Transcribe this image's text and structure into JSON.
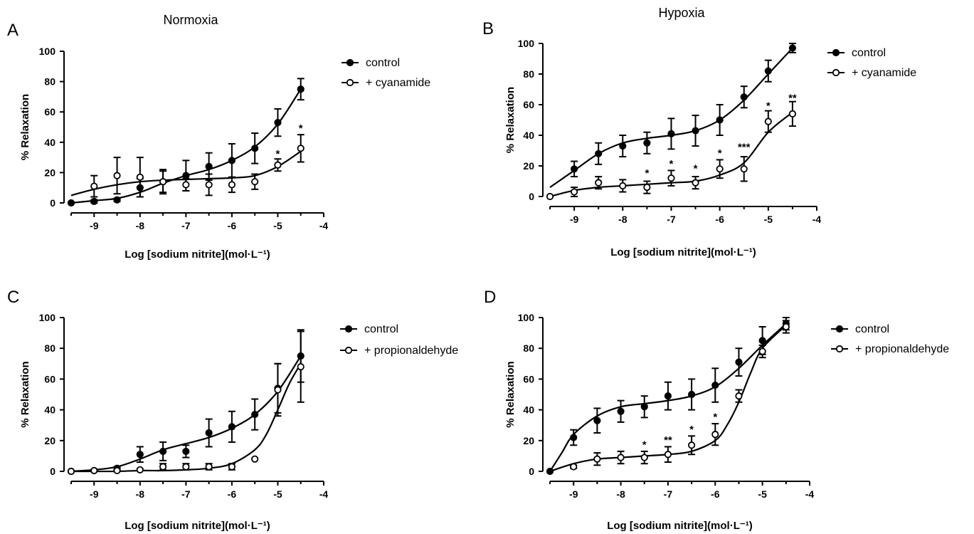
{
  "chart_data": [
    {
      "type": "line",
      "panel_label": "A",
      "title": "Normoxia",
      "xlabel": "Log [sodium nitrite](mol·L⁻¹)",
      "ylabel": "% Relaxation",
      "xlim": [
        -9.5,
        -4
      ],
      "ylim": [
        0,
        100
      ],
      "xticks": [
        "-9",
        "-8",
        "-7",
        "-6",
        "-5",
        "-4"
      ],
      "yticks": [
        "0",
        "20",
        "40",
        "60",
        "80",
        "100"
      ],
      "legend_position": "top-right",
      "series": [
        {
          "name": "control",
          "marker": "filled",
          "x": [
            -9.5,
            -9,
            -8.5,
            -8,
            -7.5,
            -7,
            -6.5,
            -6,
            -5.5,
            -5,
            -4.5
          ],
          "y": [
            0,
            1,
            2,
            10,
            14,
            18,
            24,
            28,
            36,
            53,
            75
          ],
          "err": [
            0,
            1,
            1,
            6,
            8,
            10,
            9,
            11,
            10,
            9,
            7
          ],
          "fit_x": [
            -9.5,
            -9,
            -8.5,
            -8,
            -7.5,
            -7,
            -6.5,
            -6,
            -5.5,
            -5,
            -4.5
          ],
          "fit_y": [
            0,
            1.5,
            3,
            7,
            13,
            18,
            22,
            28,
            37,
            52,
            75
          ]
        },
        {
          "name": "+ cyanamide",
          "marker": "open",
          "x": [
            -9,
            -8.5,
            -8,
            -7.5,
            -7,
            -6.5,
            -6,
            -5.5,
            -5,
            -4.5
          ],
          "y": [
            11,
            18,
            17,
            14,
            12,
            12,
            12,
            14,
            25,
            36
          ],
          "err": [
            7,
            12,
            13,
            7,
            4,
            7,
            5,
            5,
            4,
            9
          ],
          "fit_x": [
            -9.5,
            -9,
            -8.5,
            -8,
            -7.5,
            -7,
            -6.5,
            -6,
            -5.5,
            -5,
            -4.5
          ],
          "fit_y": [
            5,
            9,
            12,
            14,
            15,
            15.5,
            16,
            16.5,
            18,
            24,
            34
          ]
        }
      ],
      "annotations": [
        {
          "x": -5,
          "y": 31,
          "text": "*"
        },
        {
          "x": -4.5,
          "y": 48,
          "text": "*"
        }
      ]
    },
    {
      "type": "line",
      "panel_label": "B",
      "title": "Hypoxia",
      "xlabel": "Log [sodium nitrite](mol·L⁻¹)",
      "ylabel": "% Relaxation",
      "xlim": [
        -9.5,
        -4
      ],
      "ylim": [
        0,
        100
      ],
      "xticks": [
        "-9",
        "-8",
        "-7",
        "-6",
        "-5",
        "-4"
      ],
      "yticks": [
        "0",
        "20",
        "40",
        "60",
        "80",
        "100"
      ],
      "legend_position": "top-right",
      "series": [
        {
          "name": "control",
          "marker": "filled",
          "x": [
            -9,
            -8.5,
            -8,
            -7.5,
            -7,
            -6.5,
            -6,
            -5.5,
            -5,
            -4.5
          ],
          "y": [
            18,
            28,
            33,
            35,
            41,
            43,
            50,
            65,
            82,
            97
          ],
          "err": [
            5,
            7,
            7,
            7,
            10,
            10,
            10,
            7,
            7,
            3
          ],
          "fit_x": [
            -9.5,
            -9,
            -8.5,
            -8,
            -7.5,
            -7,
            -6.5,
            -6,
            -5.5,
            -5,
            -4.5
          ],
          "fit_y": [
            6,
            17,
            28,
            35,
            38,
            40,
            43,
            50,
            63,
            80,
            97
          ]
        },
        {
          "name": "+ cyanamide",
          "marker": "open",
          "x": [
            -9.5,
            -9,
            -8.5,
            -8,
            -7.5,
            -7,
            -6.5,
            -6,
            -5.5,
            -5,
            -4.5
          ],
          "y": [
            0,
            3,
            9,
            7,
            6,
            12,
            9,
            18,
            18,
            49,
            54
          ],
          "err": [
            0,
            3,
            4,
            4,
            4,
            5,
            4,
            6,
            8,
            7,
            8
          ],
          "fit_x": [
            -9.5,
            -9,
            -8.5,
            -8,
            -7.5,
            -7,
            -6.5,
            -6,
            -5.5,
            -5,
            -4.5
          ],
          "fit_y": [
            0,
            4,
            6,
            7,
            8,
            9,
            10,
            14,
            22,
            42,
            55
          ]
        }
      ],
      "annotations": [
        {
          "x": -7.5,
          "y": 14,
          "text": "*"
        },
        {
          "x": -7,
          "y": 20,
          "text": "*"
        },
        {
          "x": -6.5,
          "y": 17,
          "text": "*"
        },
        {
          "x": -6,
          "y": 27,
          "text": "*"
        },
        {
          "x": -5.5,
          "y": 31,
          "text": "***"
        },
        {
          "x": -5,
          "y": 58,
          "text": "*"
        },
        {
          "x": -4.5,
          "y": 63,
          "text": "**"
        }
      ]
    },
    {
      "type": "line",
      "panel_label": "C",
      "title": "",
      "xlabel": "Log [sodium nitrite](mol·L⁻¹)",
      "ylabel": "% Relaxation",
      "xlim": [
        -9.5,
        -4
      ],
      "ylim": [
        0,
        100
      ],
      "xticks": [
        "-9",
        "-8",
        "-7",
        "-6",
        "-5",
        "-4"
      ],
      "yticks": [
        "0",
        "20",
        "40",
        "60",
        "80",
        "100"
      ],
      "legend_position": "top-right",
      "series": [
        {
          "name": "control",
          "marker": "filled",
          "x": [
            -9.5,
            -9,
            -8.5,
            -8,
            -7.5,
            -7,
            -6.5,
            -6,
            -5.5,
            -5,
            -4.5
          ],
          "y": [
            0,
            0.5,
            2,
            11,
            13,
            13,
            25,
            29,
            37,
            54,
            75
          ],
          "err": [
            0,
            0.5,
            1,
            5,
            6,
            4,
            9,
            10,
            10,
            16,
            17
          ],
          "fit_x": [
            -9.5,
            -9,
            -8.5,
            -8,
            -7.5,
            -7,
            -6.5,
            -6,
            -5.5,
            -5,
            -4.5
          ],
          "fit_y": [
            0,
            1,
            3,
            8,
            14,
            18,
            22,
            28,
            37,
            52,
            75
          ]
        },
        {
          "name": "+ propionaldehyde",
          "marker": "open",
          "x": [
            -9.5,
            -9,
            -8.5,
            -8,
            -7.5,
            -7,
            -6.5,
            -6,
            -5.5,
            -5,
            -4.5
          ],
          "y": [
            0,
            0.5,
            0.5,
            1,
            3,
            3,
            3,
            3,
            8,
            53,
            68
          ],
          "err": [
            0,
            0.5,
            0.5,
            0.5,
            2,
            2,
            2,
            2,
            0,
            17,
            23
          ],
          "fit_x": [
            -9.5,
            -9,
            -8.5,
            -8,
            -7.5,
            -7,
            -6.5,
            -6,
            -5.5,
            -5.25,
            -5,
            -4.75,
            -4.5
          ],
          "fit_y": [
            0,
            0,
            0,
            0.5,
            0.5,
            1,
            2,
            5,
            14,
            24,
            40,
            57,
            70
          ]
        }
      ],
      "annotations": []
    },
    {
      "type": "line",
      "panel_label": "D",
      "title": "",
      "xlabel": "Log [sodium nitrite](mol·L⁻¹)",
      "ylabel": "% Relaxation",
      "xlim": [
        -9.5,
        -4
      ],
      "ylim": [
        0,
        100
      ],
      "xticks": [
        "-9",
        "-8",
        "-7",
        "-6",
        "-5",
        "-4"
      ],
      "yticks": [
        "0",
        "20",
        "40",
        "60",
        "80",
        "100"
      ],
      "legend_position": "top-right",
      "series": [
        {
          "name": "control",
          "marker": "filled",
          "x": [
            -9.5,
            -9,
            -8.5,
            -8,
            -7.5,
            -7,
            -6.5,
            -6,
            -5.5,
            -5,
            -4.5
          ],
          "y": [
            0,
            22,
            33,
            39,
            42,
            49,
            50,
            56,
            71,
            85,
            96
          ],
          "err": [
            0,
            5,
            8,
            7,
            7,
            9,
            10,
            11,
            9,
            9,
            4
          ],
          "fit_x": [
            -9.5,
            -9.25,
            -9,
            -8.5,
            -8,
            -7.5,
            -7,
            -6.5,
            -6,
            -5.5,
            -5,
            -4.5
          ],
          "fit_y": [
            0,
            12,
            24,
            36,
            42,
            44,
            46,
            49,
            55,
            67,
            82,
            96
          ]
        },
        {
          "name": "+ propionaldehyde",
          "marker": "open",
          "x": [
            -9,
            -8.5,
            -8,
            -7.5,
            -7,
            -6.5,
            -6,
            -5.5,
            -5,
            -4.5
          ],
          "y": [
            3,
            8,
            9,
            9,
            11,
            17,
            24,
            49,
            78,
            94
          ],
          "err": [
            1,
            4,
            4,
            4,
            5,
            6,
            7,
            4,
            4,
            4
          ],
          "fit_x": [
            -9.5,
            -9,
            -8.5,
            -8,
            -7.5,
            -7,
            -6.5,
            -6,
            -5.75,
            -5.5,
            -5.25,
            -5,
            -4.5
          ],
          "fit_y": [
            0,
            5,
            8,
            9,
            10,
            11,
            13,
            20,
            30,
            45,
            64,
            80,
            95
          ]
        }
      ],
      "annotations": [
        {
          "x": -7.5,
          "y": 16,
          "text": "*"
        },
        {
          "x": -7,
          "y": 19,
          "text": "**"
        },
        {
          "x": -6.5,
          "y": 26,
          "text": "*"
        },
        {
          "x": -6,
          "y": 34,
          "text": "*"
        }
      ]
    }
  ]
}
